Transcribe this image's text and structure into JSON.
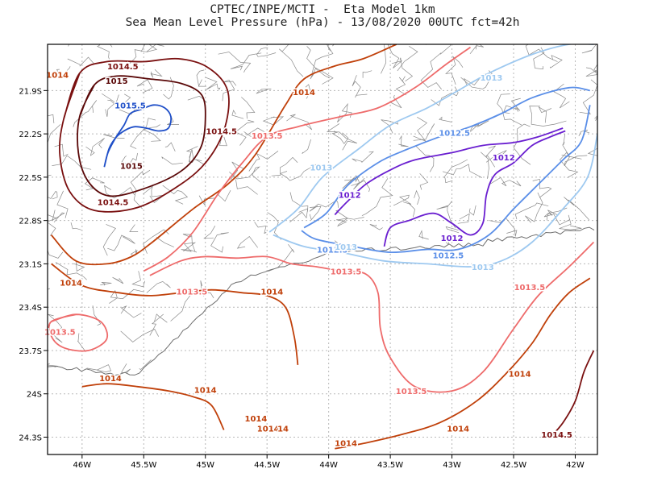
{
  "title": {
    "line1": "CPTEC/INPE/MCTI -  Eta Model 1km",
    "line2": "Sea Mean Level Pressure (hPa) - 13/08/2020 00UTC fct=42h"
  },
  "axes": {
    "lon_ticks": [
      "46W",
      "45.5W",
      "45W",
      "44.5W",
      "44W",
      "43.5W",
      "43W",
      "42.5W",
      "42W"
    ],
    "lat_ticks": [
      "21.9S",
      "22.2S",
      "22.5S",
      "22.8S",
      "23.1S",
      "23.4S",
      "23.7S",
      "24S",
      "24.3S"
    ]
  },
  "colors": {
    "c1012": "#6a1fd0",
    "c1012_5": "#5b8fe8",
    "c1013": "#9ec9f0",
    "c1013_5": "#ee6b6b",
    "c1014": "#c0400a",
    "c1014_5": "#7a1010",
    "c1015": "#5a0808",
    "c1015_5": "#1f4fc8",
    "border": "#8a8a8a",
    "grid": "#b8b8b8"
  },
  "contour_labels": [
    {
      "text": "1014.5",
      "color": "c1014_5",
      "lon": -45.67,
      "lat": -21.73
    },
    {
      "text": "1014",
      "color": "c1014",
      "lon": -46.2,
      "lat": -21.79
    },
    {
      "text": "1015",
      "color": "c1015",
      "lon": -45.72,
      "lat": -21.83
    },
    {
      "text": "1015.5",
      "color": "c1015_5",
      "lon": -45.61,
      "lat": -22.0
    },
    {
      "text": "1014.5",
      "color": "c1014_5",
      "lon": -44.87,
      "lat": -22.18
    },
    {
      "text": "1015",
      "color": "c1015",
      "lon": -45.6,
      "lat": -22.42
    },
    {
      "text": "1014.5",
      "color": "c1014_5",
      "lon": -45.75,
      "lat": -22.67
    },
    {
      "text": "1014",
      "color": "c1014",
      "lon": -44.2,
      "lat": -21.91
    },
    {
      "text": "1013.5",
      "color": "c1013_5",
      "lon": -44.5,
      "lat": -22.21
    },
    {
      "text": "1013",
      "color": "c1013",
      "lon": -42.68,
      "lat": -21.81
    },
    {
      "text": "1012.5",
      "color": "c1012_5",
      "lon": -42.98,
      "lat": -22.19
    },
    {
      "text": "1012",
      "color": "c1012",
      "lon": -42.58,
      "lat": -22.36
    },
    {
      "text": "1013",
      "color": "c1013",
      "lon": -44.06,
      "lat": -22.43
    },
    {
      "text": "1012",
      "color": "c1012",
      "lon": -43.83,
      "lat": -22.62
    },
    {
      "text": "1012.5",
      "color": "c1012_5",
      "lon": -43.97,
      "lat": -23.0
    },
    {
      "text": "1013",
      "color": "c1013",
      "lon": -43.86,
      "lat": -22.98
    },
    {
      "text": "1012",
      "color": "c1012",
      "lon": -43.0,
      "lat": -22.92
    },
    {
      "text": "1012.5",
      "color": "c1012_5",
      "lon": -43.03,
      "lat": -23.04
    },
    {
      "text": "1013",
      "color": "c1013",
      "lon": -42.75,
      "lat": -23.12
    },
    {
      "text": "1013.5",
      "color": "c1013_5",
      "lon": -43.86,
      "lat": -23.15
    },
    {
      "text": "1014",
      "color": "c1014",
      "lon": -46.09,
      "lat": -23.23
    },
    {
      "text": "1013.5",
      "color": "c1013_5",
      "lon": -45.11,
      "lat": -23.29
    },
    {
      "text": "1014",
      "color": "c1014",
      "lon": -44.46,
      "lat": -23.29
    },
    {
      "text": "1013.5",
      "color": "c1013_5",
      "lon": -42.37,
      "lat": -23.26
    },
    {
      "text": "1013.5",
      "color": "c1013_5",
      "lon": -46.18,
      "lat": -23.57
    },
    {
      "text": "1013.5",
      "color": "c1013_5",
      "lon": -43.33,
      "lat": -23.98
    },
    {
      "text": "1014",
      "color": "c1014",
      "lon": -42.45,
      "lat": -23.86
    },
    {
      "text": "1014",
      "color": "c1014",
      "lon": -45.77,
      "lat": -23.89
    },
    {
      "text": "1014",
      "color": "c1014",
      "lon": -45.0,
      "lat": -23.97
    },
    {
      "text": "1014",
      "color": "c1014",
      "lon": -44.59,
      "lat": -24.17
    },
    {
      "text": "1014",
      "color": "c1014",
      "lon": -44.49,
      "lat": -24.24
    },
    {
      "text": "14",
      "color": "c1014",
      "lon": -44.37,
      "lat": -24.24
    },
    {
      "text": "1014",
      "color": "c1014",
      "lon": -42.95,
      "lat": -24.24
    },
    {
      "text": "1014",
      "color": "c1014",
      "lon": -43.86,
      "lat": -24.34
    },
    {
      "text": "1014.5",
      "color": "c1014_5",
      "lon": -42.15,
      "lat": -24.28
    }
  ],
  "contours": [
    {
      "level": "1015.5",
      "color": "c1015_5",
      "closed": false,
      "points": [
        [
          -45.82,
          -22.43
        ],
        [
          -45.78,
          -22.3
        ],
        [
          -45.72,
          -22.22
        ],
        [
          -45.64,
          -22.17
        ],
        [
          -45.57,
          -22.15
        ],
        [
          -45.48,
          -22.16
        ],
        [
          -45.38,
          -22.18
        ],
        [
          -45.3,
          -22.16
        ],
        [
          -45.28,
          -22.08
        ],
        [
          -45.33,
          -22.02
        ],
        [
          -45.42,
          -22.0
        ],
        [
          -45.52,
          -22.03
        ],
        [
          -45.61,
          -22.06
        ],
        [
          -45.66,
          -22.14
        ],
        [
          -45.73,
          -22.23
        ],
        [
          -45.79,
          -22.33
        ],
        [
          -45.82,
          -22.43
        ]
      ]
    },
    {
      "level": "1015",
      "color": "c1015",
      "closed": true,
      "points": [
        [
          -46.02,
          -22.08
        ],
        [
          -45.9,
          -21.86
        ],
        [
          -45.72,
          -21.8
        ],
        [
          -45.45,
          -21.82
        ],
        [
          -45.2,
          -21.85
        ],
        [
          -45.03,
          -21.93
        ],
        [
          -45.0,
          -22.1
        ],
        [
          -45.04,
          -22.3
        ],
        [
          -45.2,
          -22.46
        ],
        [
          -45.5,
          -22.58
        ],
        [
          -45.78,
          -22.63
        ],
        [
          -45.95,
          -22.53
        ],
        [
          -46.03,
          -22.33
        ]
      ]
    },
    {
      "level": "1014.5",
      "color": "c1014_5",
      "closed": true,
      "points": [
        [
          -46.15,
          -22.1
        ],
        [
          -46.02,
          -21.78
        ],
        [
          -45.8,
          -21.7
        ],
        [
          -45.5,
          -21.7
        ],
        [
          -45.22,
          -21.68
        ],
        [
          -44.98,
          -21.74
        ],
        [
          -44.82,
          -21.9
        ],
        [
          -44.84,
          -22.15
        ],
        [
          -44.98,
          -22.38
        ],
        [
          -45.2,
          -22.55
        ],
        [
          -45.55,
          -22.71
        ],
        [
          -45.9,
          -22.73
        ],
        [
          -46.1,
          -22.6
        ],
        [
          -46.18,
          -22.35
        ]
      ]
    },
    {
      "level": "1014",
      "color": "c1014",
      "closed": false,
      "points": [
        [
          -46.25,
          -22.9
        ],
        [
          -46.05,
          -23.08
        ],
        [
          -45.8,
          -23.1
        ],
        [
          -45.6,
          -23.05
        ],
        [
          -45.43,
          -22.95
        ],
        [
          -45.1,
          -22.72
        ],
        [
          -44.82,
          -22.55
        ],
        [
          -44.6,
          -22.35
        ],
        [
          -44.35,
          -22.0
        ],
        [
          -44.2,
          -21.82
        ],
        [
          -43.95,
          -21.73
        ],
        [
          -43.72,
          -21.68
        ],
        [
          -43.45,
          -21.58
        ]
      ]
    },
    {
      "level": "1013.5",
      "color": "c1013_5",
      "closed": false,
      "points": [
        [
          -45.5,
          -23.15
        ],
        [
          -45.3,
          -23.05
        ],
        [
          -45.1,
          -22.88
        ],
        [
          -44.9,
          -22.62
        ],
        [
          -44.7,
          -22.4
        ],
        [
          -44.5,
          -22.22
        ],
        [
          -44.25,
          -22.15
        ],
        [
          -43.9,
          -22.08
        ],
        [
          -43.6,
          -22.02
        ],
        [
          -43.3,
          -21.88
        ],
        [
          -43.05,
          -21.72
        ],
        [
          -42.85,
          -21.6
        ]
      ]
    },
    {
      "level": "1013",
      "color": "c1013",
      "closed": false,
      "points": [
        [
          -44.48,
          -22.88
        ],
        [
          -44.25,
          -22.72
        ],
        [
          -44.05,
          -22.5
        ],
        [
          -43.75,
          -22.3
        ],
        [
          -43.5,
          -22.14
        ],
        [
          -43.2,
          -22.02
        ],
        [
          -42.95,
          -21.9
        ],
        [
          -42.7,
          -21.78
        ],
        [
          -42.35,
          -21.65
        ],
        [
          -42.05,
          -21.58
        ],
        [
          -41.85,
          -21.58
        ]
      ]
    },
    {
      "level": "1012.5",
      "color": "c1012_5",
      "closed": false,
      "points": [
        [
          -44.2,
          -22.85
        ],
        [
          -44.02,
          -22.75
        ],
        [
          -43.85,
          -22.56
        ],
        [
          -43.6,
          -22.4
        ],
        [
          -43.4,
          -22.32
        ],
        [
          -43.1,
          -22.22
        ],
        [
          -42.85,
          -22.15
        ],
        [
          -42.6,
          -22.06
        ],
        [
          -42.35,
          -21.95
        ],
        [
          -42.05,
          -21.88
        ],
        [
          -41.88,
          -21.9
        ]
      ]
    },
    {
      "level": "1012",
      "color": "c1012",
      "closed": false,
      "points": [
        [
          -43.95,
          -22.76
        ],
        [
          -43.85,
          -22.67
        ],
        [
          -43.7,
          -22.55
        ],
        [
          -43.5,
          -22.45
        ],
        [
          -43.3,
          -22.38
        ],
        [
          -43.0,
          -22.33
        ],
        [
          -42.75,
          -22.28
        ],
        [
          -42.5,
          -22.26
        ],
        [
          -42.3,
          -22.22
        ],
        [
          -42.1,
          -22.16
        ]
      ]
    },
    {
      "level": "1012",
      "color": "c1012",
      "closed": false,
      "points": [
        [
          -43.55,
          -22.98
        ],
        [
          -43.5,
          -22.85
        ],
        [
          -43.35,
          -22.8
        ],
        [
          -43.15,
          -22.75
        ],
        [
          -43.0,
          -22.82
        ],
        [
          -42.85,
          -22.9
        ],
        [
          -42.75,
          -22.82
        ],
        [
          -42.72,
          -22.62
        ],
        [
          -42.65,
          -22.48
        ],
        [
          -42.5,
          -22.4
        ],
        [
          -42.35,
          -22.28
        ],
        [
          -42.2,
          -22.22
        ],
        [
          -42.08,
          -22.18
        ]
      ]
    },
    {
      "level": "1012.5",
      "color": "c1012_5",
      "closed": false,
      "points": [
        [
          -44.22,
          -22.87
        ],
        [
          -44.1,
          -22.93
        ],
        [
          -43.8,
          -22.98
        ],
        [
          -43.5,
          -23.02
        ],
        [
          -43.2,
          -23.0
        ],
        [
          -42.95,
          -23.0
        ],
        [
          -42.7,
          -22.9
        ],
        [
          -42.5,
          -22.72
        ],
        [
          -42.3,
          -22.55
        ],
        [
          -42.1,
          -22.38
        ],
        [
          -41.95,
          -22.25
        ],
        [
          -41.88,
          -22.0
        ]
      ]
    },
    {
      "level": "1013",
      "color": "c1013",
      "closed": false,
      "points": [
        [
          -44.45,
          -22.9
        ],
        [
          -44.2,
          -22.98
        ],
        [
          -43.9,
          -23.02
        ],
        [
          -43.55,
          -23.08
        ],
        [
          -43.2,
          -23.1
        ],
        [
          -42.85,
          -23.12
        ],
        [
          -42.6,
          -23.08
        ],
        [
          -42.35,
          -22.95
        ],
        [
          -42.1,
          -22.72
        ],
        [
          -41.9,
          -22.5
        ],
        [
          -41.82,
          -22.2
        ]
      ]
    },
    {
      "level": "1013.5",
      "color": "c1013_5",
      "closed": false,
      "points": [
        [
          -45.45,
          -23.18
        ],
        [
          -45.2,
          -23.08
        ],
        [
          -45.0,
          -23.05
        ],
        [
          -44.75,
          -23.06
        ],
        [
          -44.5,
          -23.05
        ],
        [
          -44.3,
          -23.1
        ],
        [
          -44.1,
          -23.12
        ],
        [
          -43.9,
          -23.15
        ],
        [
          -43.7,
          -23.17
        ],
        [
          -43.6,
          -23.3
        ],
        [
          -43.58,
          -23.55
        ],
        [
          -43.5,
          -23.75
        ],
        [
          -43.3,
          -23.95
        ],
        [
          -43.0,
          -23.98
        ],
        [
          -42.75,
          -23.85
        ],
        [
          -42.5,
          -23.55
        ],
        [
          -42.3,
          -23.32
        ],
        [
          -42.05,
          -23.12
        ],
        [
          -41.85,
          -22.95
        ]
      ]
    },
    {
      "level": "1014",
      "color": "c1014",
      "closed": false,
      "points": [
        [
          -46.25,
          -23.1
        ],
        [
          -46.0,
          -23.25
        ],
        [
          -45.7,
          -23.3
        ],
        [
          -45.45,
          -23.32
        ],
        [
          -45.2,
          -23.3
        ],
        [
          -44.95,
          -23.28
        ],
        [
          -44.7,
          -23.3
        ],
        [
          -44.5,
          -23.32
        ],
        [
          -44.35,
          -23.4
        ],
        [
          -44.28,
          -23.6
        ],
        [
          -44.25,
          -23.8
        ]
      ]
    },
    {
      "level": "1014",
      "color": "c1014",
      "closed": false,
      "points": [
        [
          -46.0,
          -23.95
        ],
        [
          -45.8,
          -23.93
        ],
        [
          -45.55,
          -23.95
        ],
        [
          -45.3,
          -23.98
        ],
        [
          -45.1,
          -24.02
        ],
        [
          -44.95,
          -24.08
        ],
        [
          -44.85,
          -24.25
        ]
      ]
    },
    {
      "level": "1014",
      "color": "c1014",
      "closed": false,
      "points": [
        [
          -43.95,
          -24.38
        ],
        [
          -43.7,
          -24.34
        ],
        [
          -43.4,
          -24.28
        ],
        [
          -43.1,
          -24.2
        ],
        [
          -42.8,
          -24.05
        ],
        [
          -42.55,
          -23.85
        ],
        [
          -42.35,
          -23.65
        ],
        [
          -42.2,
          -23.45
        ],
        [
          -42.05,
          -23.3
        ],
        [
          -41.88,
          -23.2
        ]
      ]
    },
    {
      "level": "1014.5",
      "color": "c1014_5",
      "closed": false,
      "points": [
        [
          -42.2,
          -24.3
        ],
        [
          -42.1,
          -24.2
        ],
        [
          -42.0,
          -24.05
        ],
        [
          -41.93,
          -23.85
        ],
        [
          -41.85,
          -23.7
        ]
      ]
    },
    {
      "level": "1013.5",
      "color": "c1013_5",
      "closed": true,
      "points": [
        [
          -46.25,
          -23.5
        ],
        [
          -46.05,
          -23.45
        ],
        [
          -45.85,
          -23.5
        ],
        [
          -45.8,
          -23.62
        ],
        [
          -45.95,
          -23.7
        ],
        [
          -46.15,
          -23.68
        ],
        [
          -46.25,
          -23.6
        ]
      ]
    }
  ]
}
